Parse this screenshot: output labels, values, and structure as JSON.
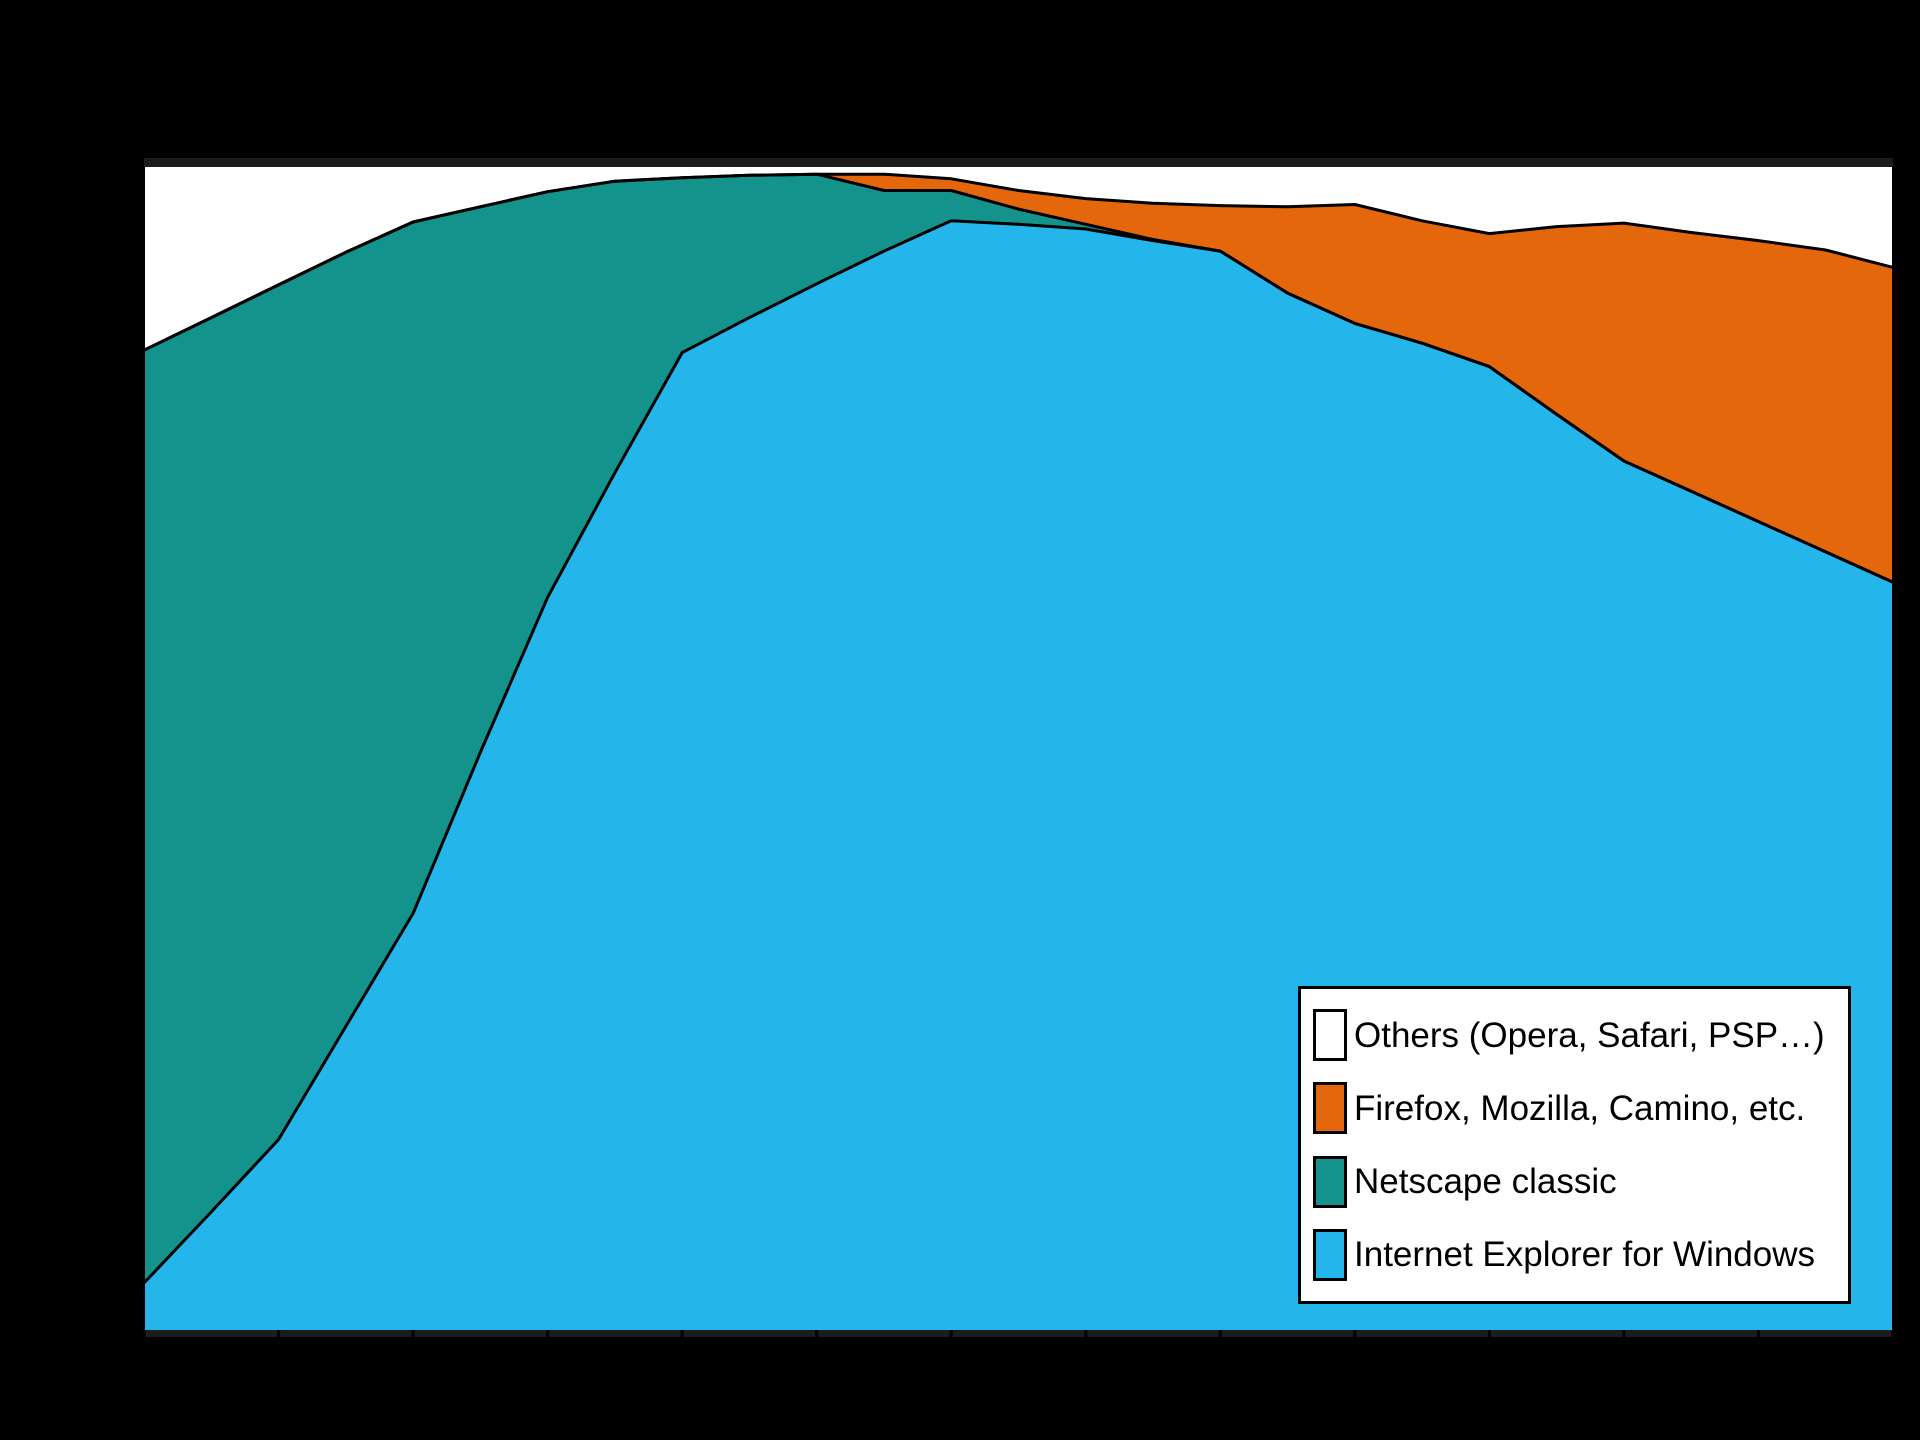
{
  "figure": {
    "background_color": "#000000",
    "plot_background_color": "#ffffff",
    "boundary_line_color": "#000000",
    "spine_color": "#1c1c1c",
    "tick_color": "#000000"
  },
  "legend": {
    "position": "lower right",
    "items": [
      {
        "label": "Others (Opera, Safari, PSP…)",
        "color": "#ffffff"
      },
      {
        "label": "Firefox, Mozilla, Camino, etc.",
        "color": "#e4670c"
      },
      {
        "label": "Netscape classic",
        "color": "#13938b"
      },
      {
        "label": "Internet Explorer for Windows",
        "color": "#24b6ea"
      }
    ]
  },
  "chart_data": {
    "type": "area",
    "stacked": true,
    "stack_total": 100,
    "grid": false,
    "legend_position": "lower right",
    "x_label": "",
    "y_label": "",
    "x_range": [
      1996,
      2009
    ],
    "ylim": [
      0,
      100
    ],
    "x_ticks": [
      1996,
      1997,
      1998,
      1999,
      2000,
      2001,
      2002,
      2003,
      2004,
      2005,
      2006,
      2007,
      2008,
      2009
    ],
    "x": [
      1996,
      1996.5,
      1997,
      1997.5,
      1998,
      1998.5,
      1999,
      1999.5,
      2000,
      2000.5,
      2001,
      2001.5,
      2002,
      2002.5,
      2003,
      2003.5,
      2004,
      2004.5,
      2005,
      2005.5,
      2006,
      2006.5,
      2007,
      2007.5,
      2008,
      2008.5,
      2009
    ],
    "series": [
      {
        "name": "Internet Explorer for Windows",
        "color": "#24b6ea",
        "stack_order": 1,
        "values": [
          4.2,
          10.3,
          16.5,
          26.2,
          35.9,
          49.7,
          63.0,
          73.7,
          84.0,
          87.0,
          89.9,
          92.7,
          95.3,
          95.0,
          94.6,
          93.6,
          92.7,
          89.1,
          86.5,
          84.8,
          82.8,
          78.7,
          74.7,
          72.1,
          69.5,
          66.9,
          64.3
        ]
      },
      {
        "name": "Netscape classic",
        "color": "#13938b",
        "stack_order": 2,
        "values": [
          80.0,
          76.7,
          73.3,
          66.4,
          59.3,
          46.8,
          34.8,
          25.0,
          15.0,
          12.2,
          9.4,
          5.2,
          2.6,
          1.3,
          0.4,
          0.1,
          0,
          0,
          0,
          0,
          0,
          0,
          0,
          0,
          0,
          0,
          0
        ]
      },
      {
        "name": "Firefox, Mozilla, Camino, etc.",
        "color": "#e4670c",
        "stack_order": 3,
        "values": [
          0,
          0,
          0,
          0,
          0,
          0,
          0,
          0,
          0,
          0,
          0,
          1.4,
          1.0,
          1.6,
          2.2,
          3.1,
          3.9,
          7.4,
          10.2,
          10.5,
          11.4,
          16.1,
          20.4,
          22.2,
          24.1,
          25.9,
          27.0
        ]
      },
      {
        "name": "Others (Opera, Safari, PSP…)",
        "color": "#ffffff",
        "stack_order": 4,
        "values": [
          15.8,
          13.0,
          10.2,
          7.4,
          4.8,
          3.5,
          2.2,
          1.3,
          1.0,
          0.8,
          0.7,
          0.7,
          1.1,
          2.1,
          2.8,
          3.2,
          3.4,
          3.5,
          3.3,
          4.7,
          5.8,
          5.2,
          4.9,
          5.7,
          6.4,
          7.2,
          8.7
        ]
      }
    ]
  }
}
